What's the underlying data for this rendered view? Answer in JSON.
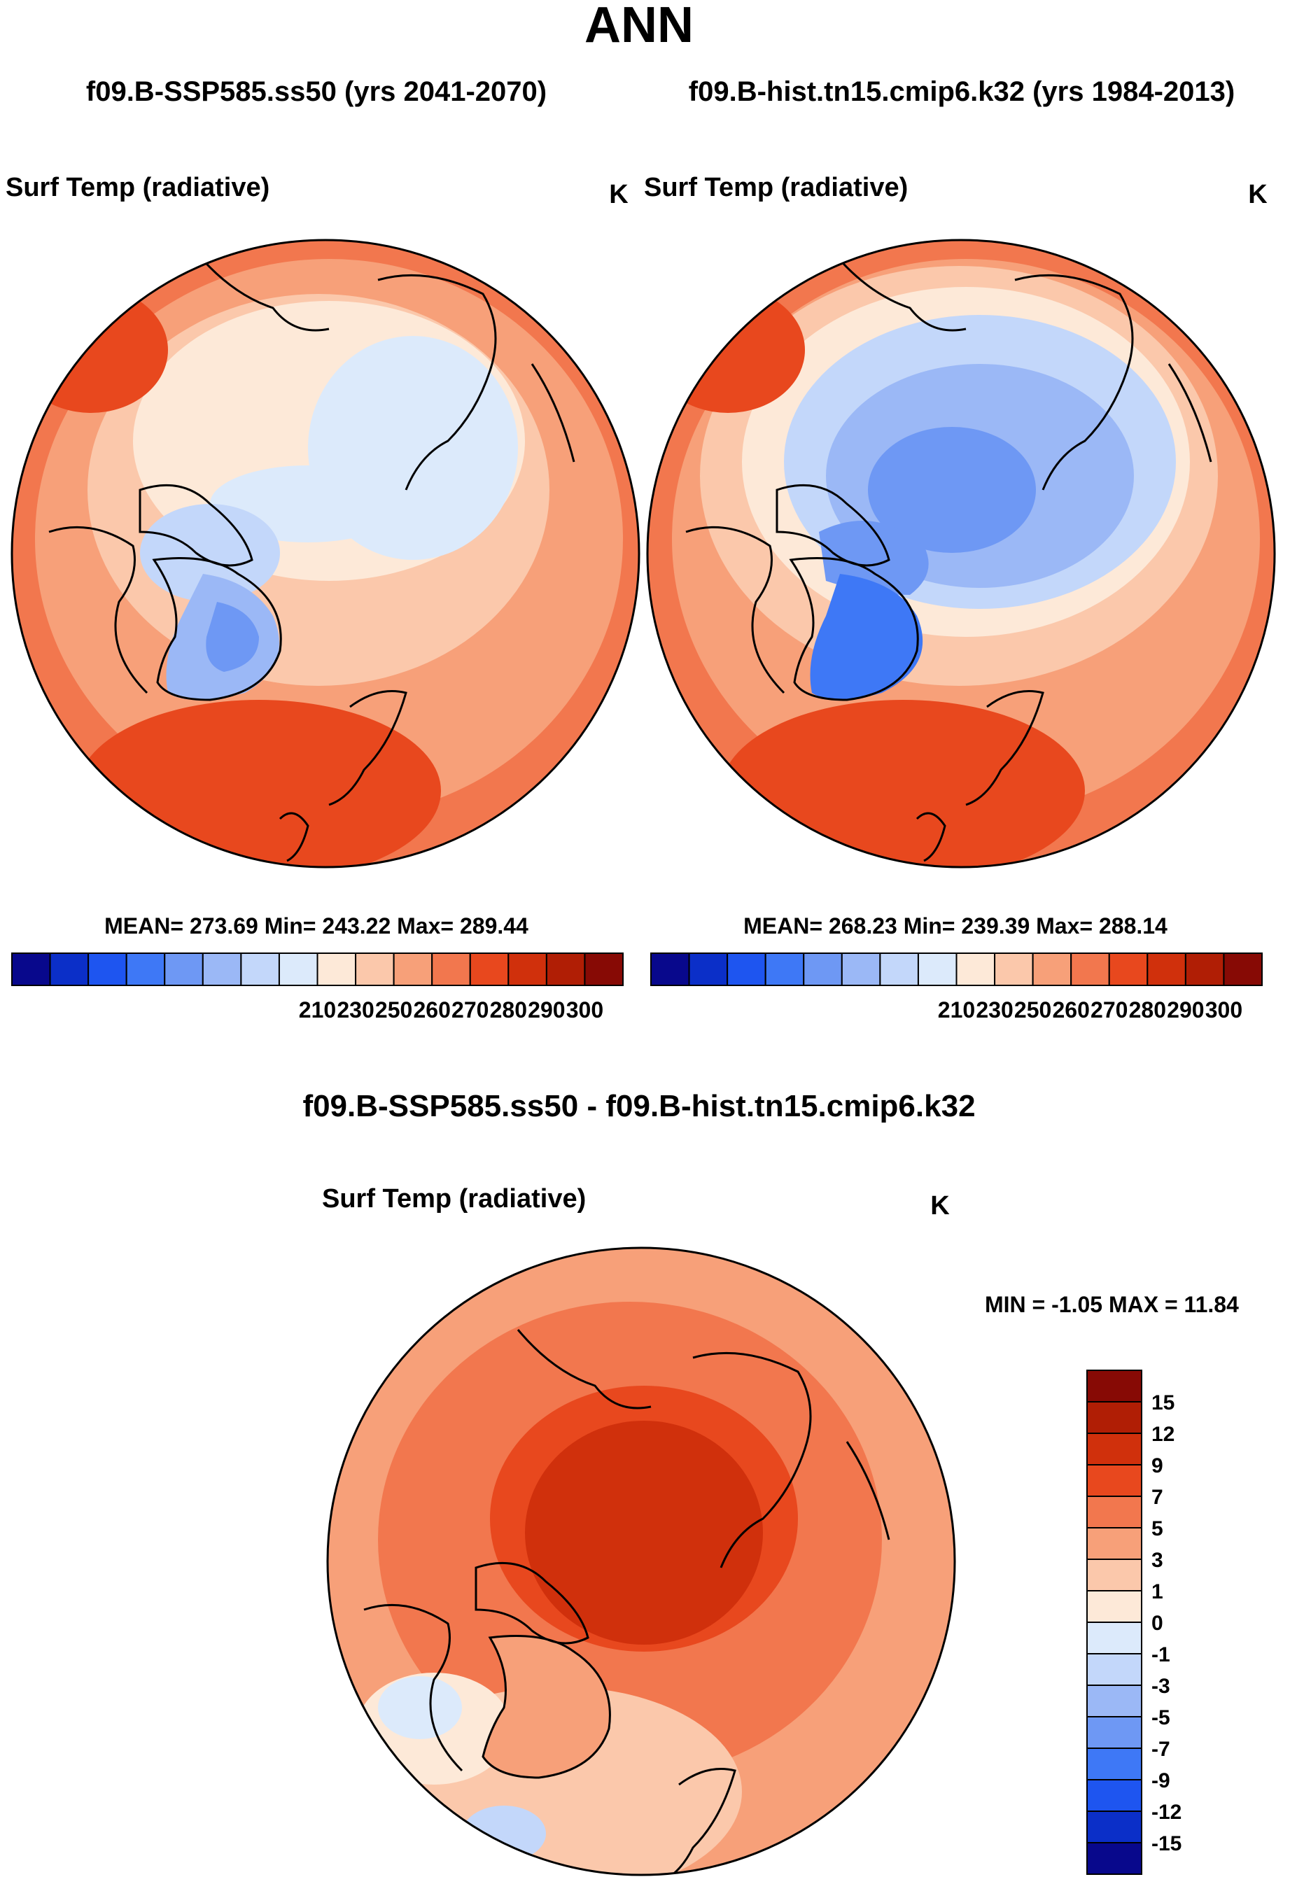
{
  "title": "ANN",
  "header": {
    "case_left": "f09.B-SSP585.ss50 (yrs 2041-2070)",
    "case_right": "f09.B-hist.tn15.cmip6.k32 (yrs 1984-2013)"
  },
  "panels": [
    {
      "variable": "Surf Temp (radiative)",
      "units": "K",
      "stats": "MEAN= 273.69  Min= 243.22  Max= 289.44",
      "mean": 273.69,
      "min": 243.22,
      "max": 289.44
    },
    {
      "variable": "Surf Temp (radiative)",
      "units": "K",
      "stats": "MEAN= 268.23  Min= 239.39  Max= 288.14",
      "mean": 268.23,
      "min": 239.39,
      "max": 288.14
    }
  ],
  "diff": {
    "title": "f09.B-SSP585.ss50 - f09.B-hist.tn15.cmip6.k32",
    "variable": "Surf Temp (radiative)",
    "units": "K",
    "minmax": "MIN =  -1.05 MAX =  11.84",
    "min": -1.05,
    "max": 11.84
  },
  "colors": {
    "abs_scale": [
      "#08088c",
      "#0b2fc8",
      "#1e55f0",
      "#3e78f6",
      "#6e98f4",
      "#9bb8f6",
      "#c3d7fa",
      "#dceafb",
      "#fde9d8",
      "#fbc8ab",
      "#f7a079",
      "#f2774e",
      "#e8481e",
      "#d0300c",
      "#b01e05",
      "#870a05"
    ],
    "diff_scale": [
      "#08088c",
      "#0b2fc8",
      "#1e55f0",
      "#3e78f6",
      "#6e98f4",
      "#9bb8f6",
      "#c3d7fa",
      "#dceafb",
      "#fde9d8",
      "#fbc8ab",
      "#f7a079",
      "#f2774e",
      "#e8481e",
      "#d0300c",
      "#b01e05",
      "#870a05"
    ]
  },
  "chart_data": [
    {
      "type": "heatmap",
      "projection": "polar stereographic (Northern Hemisphere)",
      "title": "Surf Temp (radiative)",
      "units": "K",
      "colorbar": {
        "orientation": "horizontal",
        "labels": [
          "210",
          "230",
          "250",
          "260",
          "270",
          "280",
          "290",
          "300"
        ],
        "levels": [
          210,
          230,
          250,
          260,
          270,
          280,
          290,
          300
        ]
      },
      "stats": {
        "mean": 273.69,
        "min": 243.22,
        "max": 289.44
      }
    },
    {
      "type": "heatmap",
      "projection": "polar stereographic (Northern Hemisphere)",
      "title": "Surf Temp (radiative)",
      "units": "K",
      "colorbar": {
        "orientation": "horizontal",
        "labels": [
          "210",
          "230",
          "250",
          "260",
          "270",
          "280",
          "290",
          "300"
        ],
        "levels": [
          210,
          230,
          250,
          260,
          270,
          280,
          290,
          300
        ]
      },
      "stats": {
        "mean": 268.23,
        "min": 239.39,
        "max": 288.14
      }
    },
    {
      "type": "heatmap",
      "projection": "polar stereographic (Northern Hemisphere)",
      "title": "f09.B-SSP585.ss50 - f09.B-hist.tn15.cmip6.k32",
      "units": "K",
      "colorbar": {
        "orientation": "vertical",
        "labels": [
          "15",
          "12",
          "9",
          "7",
          "5",
          "3",
          "1",
          "0",
          "-1",
          "-3",
          "-5",
          "-7",
          "-9",
          "-12",
          "-15"
        ],
        "levels": [
          15,
          12,
          9,
          7,
          5,
          3,
          1,
          0,
          -1,
          -3,
          -5,
          -7,
          -9,
          -12,
          -15
        ]
      },
      "stats": {
        "min": -1.05,
        "max": 11.84
      }
    }
  ]
}
